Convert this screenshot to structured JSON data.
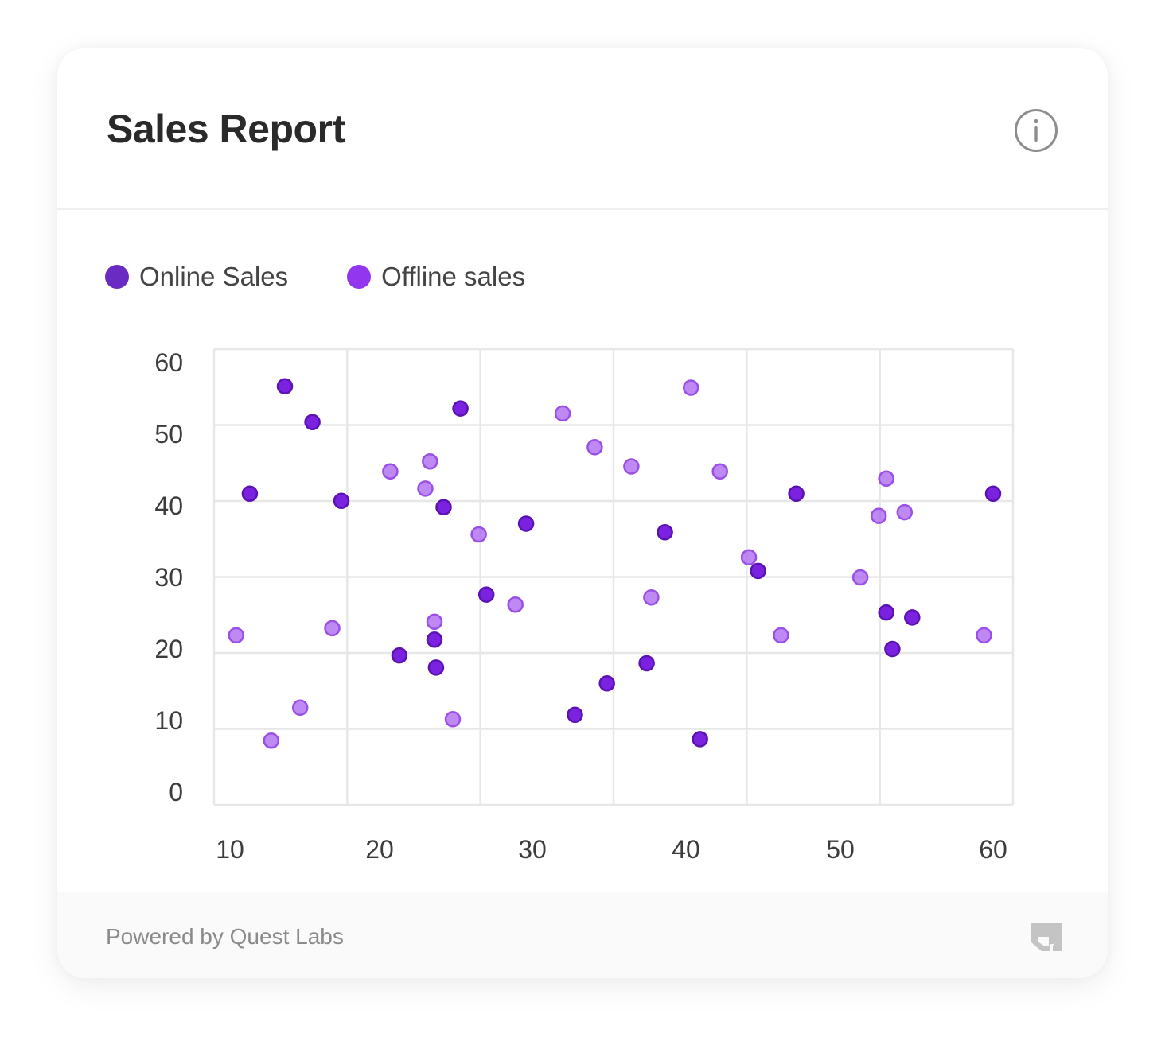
{
  "header": {
    "title": "Sales Report",
    "info_icon": "info-circle-icon"
  },
  "legend": [
    {
      "label": "Online Sales",
      "color": "#6a2bc2"
    },
    {
      "label": "Offline sales",
      "color": "#9236f0"
    }
  ],
  "footer": {
    "text": "Powered by Quest Labs",
    "logo_icon": "quest-labs-logo-icon"
  },
  "chart_data": {
    "type": "scatter",
    "xlim": [
      10,
      60
    ],
    "ylim": [
      0,
      60
    ],
    "x_ticks": [
      "10",
      "20",
      "30",
      "40",
      "50",
      "60"
    ],
    "y_ticks": [
      "60",
      "50",
      "40",
      "30",
      "20",
      "10",
      "0"
    ],
    "grid": true,
    "legend_position": "top-left",
    "series": [
      {
        "name": "Online Sales",
        "color": "#7a22e0",
        "points": [
          [
            11.3,
            41.7
          ],
          [
            13.6,
            56.7
          ],
          [
            15.4,
            51.7
          ],
          [
            17.3,
            40.7
          ],
          [
            21.1,
            19.1
          ],
          [
            23.4,
            21.3
          ],
          [
            23.5,
            17.4
          ],
          [
            24.0,
            39.8
          ],
          [
            25.1,
            53.6
          ],
          [
            26.8,
            27.6
          ],
          [
            29.4,
            37.5
          ],
          [
            32.6,
            10.8
          ],
          [
            34.7,
            15.2
          ],
          [
            37.3,
            18.0
          ],
          [
            38.5,
            36.3
          ],
          [
            40.8,
            7.4
          ],
          [
            44.6,
            30.9
          ],
          [
            47.1,
            41.7
          ],
          [
            53.0,
            25.1
          ],
          [
            53.4,
            20.0
          ],
          [
            54.7,
            24.4
          ],
          [
            60.0,
            41.7
          ]
        ]
      },
      {
        "name": "Offline sales",
        "color": "#a65cf0",
        "points": [
          [
            10.4,
            21.9
          ],
          [
            12.7,
            7.2
          ],
          [
            14.6,
            11.8
          ],
          [
            16.7,
            22.9
          ],
          [
            20.5,
            44.8
          ],
          [
            22.8,
            42.4
          ],
          [
            23.1,
            46.2
          ],
          [
            23.4,
            23.8
          ],
          [
            24.6,
            10.2
          ],
          [
            26.3,
            36.0
          ],
          [
            28.7,
            26.2
          ],
          [
            31.8,
            52.9
          ],
          [
            33.9,
            48.2
          ],
          [
            36.3,
            45.5
          ],
          [
            37.6,
            27.2
          ],
          [
            40.2,
            56.5
          ],
          [
            42.1,
            44.8
          ],
          [
            44.0,
            32.8
          ],
          [
            46.1,
            21.9
          ],
          [
            51.3,
            30.0
          ],
          [
            52.5,
            38.6
          ],
          [
            53.0,
            43.8
          ],
          [
            54.2,
            39.1
          ],
          [
            59.4,
            21.9
          ]
        ]
      }
    ]
  }
}
